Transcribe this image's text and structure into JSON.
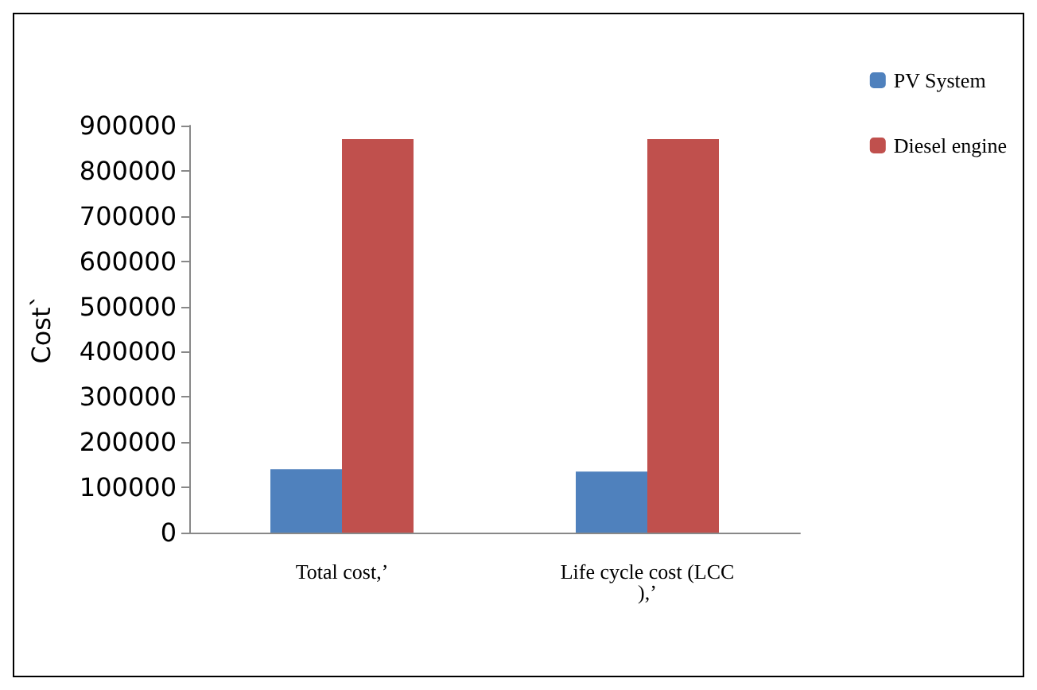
{
  "chart_data": {
    "type": "bar",
    "ylabel": "Cost`",
    "categories": [
      "Total cost,’",
      "Life cycle cost (LCC),’"
    ],
    "series": [
      {
        "name": "PV System",
        "color": "#4f81bd",
        "values": [
          140000,
          135000
        ]
      },
      {
        "name": "Diesel engine",
        "color": "#c0504d",
        "values": [
          870000,
          870000
        ]
      }
    ],
    "ylim": [
      0,
      900000
    ],
    "yticks": [
      0,
      100000,
      200000,
      300000,
      400000,
      500000,
      600000,
      700000,
      800000,
      900000
    ],
    "grid": false,
    "legend": "top right"
  }
}
